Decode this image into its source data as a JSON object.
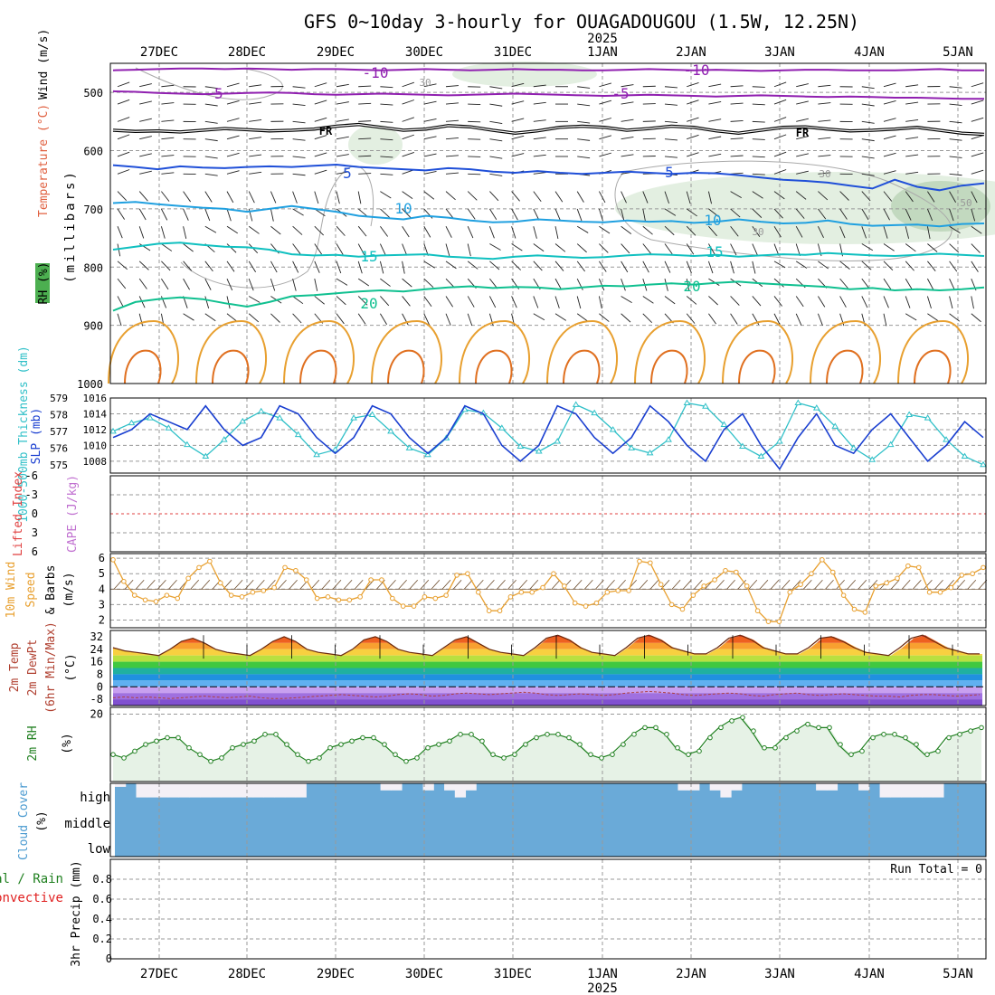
{
  "title": "GFS 0~10day 3-hourly for OUAGADOUGOU (1.5W, 12.25N)",
  "year_label": "2025",
  "date_labels": [
    "27DEC",
    "28DEC",
    "29DEC",
    "30DEC",
    "31DEC",
    "1JAN",
    "2JAN",
    "3JAN",
    "4JAN",
    "5JAN"
  ],
  "run_total_label": "Run Total = 0",
  "colors": {
    "wind_barb": "#000000",
    "temp_warm": "#e8a030",
    "temp_line_blue": "#1f4fd8",
    "slp": "#1a3fd0",
    "thickness": "#30c0c8",
    "wind_speed": "#e8a030",
    "rh": "#208020",
    "cloud": "#6aaad8",
    "rh_fill": "#e6f2e6"
  },
  "chart_data": [
    {
      "type": "line",
      "panel": "upper-air",
      "ylabel_parts": [
        "RH (%)",
        "Temperature (°C)",
        "Wind (m/s)"
      ],
      "axis_label": "(millibars)",
      "y_ticks": [
        "500",
        "600",
        "700",
        "800",
        "900",
        "1000"
      ],
      "y_tick_values": [
        500,
        600,
        700,
        800,
        900,
        1000
      ],
      "ylim": [
        450,
        1000
      ],
      "isotherm_labels": [
        "-10",
        "-10",
        "-5",
        "-5",
        "FR",
        "FR",
        "5",
        "5",
        "10",
        "10",
        "15",
        "15",
        "20",
        "20",
        "30",
        "30",
        "30",
        "50"
      ],
      "isotherms": [
        {
          "label": "-10",
          "values": [
            462,
            461,
            460,
            459,
            459,
            460,
            459,
            460,
            461,
            460,
            460,
            461,
            462,
            461,
            460,
            461,
            462,
            461,
            460,
            461,
            461,
            462,
            462,
            461,
            460,
            461,
            462,
            461,
            462,
            463,
            462,
            461,
            461,
            462,
            462,
            462,
            461,
            460,
            462,
            462
          ]
        },
        {
          "label": "-5",
          "values": [
            498,
            499,
            501,
            502,
            503,
            502,
            501,
            500,
            501,
            503,
            504,
            503,
            502,
            503,
            504,
            505,
            504,
            503,
            502,
            503,
            504,
            505,
            506,
            505,
            504,
            505,
            506,
            507,
            506,
            505,
            506,
            507,
            508,
            507,
            508,
            509,
            509,
            510,
            511,
            511
          ]
        },
        {
          "label": "FR",
          "values": [
            565,
            567,
            566,
            568,
            565,
            562,
            564,
            566,
            565,
            563,
            558,
            555,
            560,
            565,
            563,
            557,
            559,
            565,
            570,
            566,
            560,
            558,
            560,
            565,
            562,
            558,
            560,
            566,
            570,
            565,
            560,
            559,
            563,
            566,
            565,
            563,
            560,
            565,
            570,
            572
          ]
        },
        {
          "label": "5",
          "values": [
            625,
            628,
            632,
            627,
            629,
            630,
            628,
            627,
            628,
            626,
            624,
            628,
            630,
            632,
            634,
            630,
            632,
            636,
            638,
            635,
            638,
            640,
            638,
            636,
            638,
            640,
            638,
            639,
            642,
            646,
            650,
            652,
            655,
            660,
            665,
            650,
            662,
            668,
            660,
            656
          ]
        },
        {
          "label": "10",
          "values": [
            690,
            688,
            692,
            695,
            698,
            700,
            705,
            700,
            695,
            700,
            705,
            712,
            715,
            718,
            712,
            715,
            720,
            723,
            722,
            718,
            720,
            722,
            723,
            720,
            722,
            721,
            724,
            722,
            718,
            722,
            725,
            724,
            720,
            726,
            729,
            728,
            727,
            730,
            726,
            725
          ]
        },
        {
          "label": "15",
          "values": [
            770,
            765,
            760,
            758,
            762,
            765,
            766,
            770,
            778,
            780,
            779,
            782,
            780,
            779,
            778,
            782,
            784,
            786,
            782,
            780,
            782,
            784,
            783,
            780,
            778,
            779,
            781,
            779,
            782,
            780,
            778,
            779,
            776,
            778,
            780,
            781,
            779,
            777,
            779,
            781
          ]
        },
        {
          "label": "20",
          "values": [
            875,
            860,
            855,
            852,
            855,
            862,
            868,
            860,
            850,
            848,
            845,
            842,
            840,
            842,
            838,
            835,
            833,
            836,
            834,
            835,
            838,
            835,
            832,
            833,
            830,
            828,
            830,
            827,
            825,
            828,
            830,
            832,
            834,
            838,
            836,
            840,
            838,
            840,
            838,
            835
          ]
        }
      ]
    },
    {
      "type": "line",
      "panel": "thickness-slp",
      "ylabel": "1000-500mb Thickness (dm)",
      "ylabel2": "SLP (mb)",
      "y_left_ticks": [
        "575",
        "576",
        "577",
        "578",
        "579"
      ],
      "y_right_ticks": [
        "1008",
        "1010",
        "1012",
        "1014",
        "1016"
      ],
      "series": [
        {
          "name": "SLP (mb)",
          "values": [
            1011,
            1012,
            1014,
            1013,
            1012,
            1015,
            1012,
            1010,
            1011,
            1015,
            1014,
            1011,
            1009,
            1011,
            1015,
            1014,
            1011,
            1009,
            1011,
            1015,
            1014,
            1010,
            1008,
            1010,
            1015,
            1014,
            1011,
            1009,
            1011,
            1015,
            1013,
            1010,
            1008,
            1012,
            1014,
            1010,
            1007,
            1011,
            1014,
            1010,
            1009,
            1012,
            1014,
            1011,
            1008,
            1010,
            1013,
            1011
          ]
        },
        {
          "name": "Thickness (dm)",
          "values": [
            577.0,
            577.5,
            577.8,
            577.2,
            576.2,
            575.5,
            576.5,
            577.6,
            578.2,
            577.8,
            576.8,
            575.6,
            575.9,
            577.8,
            578.0,
            577.0,
            576.0,
            575.6,
            576.6,
            578.3,
            578.1,
            577.2,
            576.1,
            575.8,
            576.4,
            578.6,
            578.1,
            577.1,
            576.0,
            575.7,
            576.5,
            578.7,
            578.5,
            577.4,
            576.1,
            575.5,
            576.4,
            578.7,
            578.4,
            577.3,
            576.0,
            575.3,
            576.2,
            578.0,
            577.8,
            576.5,
            575.5,
            575.0
          ]
        }
      ]
    },
    {
      "type": "line",
      "panel": "cape-li",
      "ylabel": "Lifted Index",
      "ylabel2": "CAPE (J/kg)",
      "y_ticks": [
        "-6",
        "-3",
        "0",
        "3",
        "6"
      ],
      "series": [
        {
          "name": "Lifted Index",
          "values": []
        },
        {
          "name": "CAPE (J/kg)",
          "values": []
        }
      ]
    },
    {
      "type": "line",
      "panel": "wind10m",
      "ylabel_parts": [
        "10m Wind",
        "Speed",
        "& Barbs",
        "(m/s)"
      ],
      "y_ticks": [
        "2",
        "3",
        "4",
        "5",
        "6"
      ],
      "ylim": [
        1.5,
        6.3
      ],
      "series": [
        {
          "name": "10m Wind Speed",
          "values": [
            5.9,
            4.5,
            3.6,
            3.3,
            3.2,
            3.6,
            3.4,
            4.7,
            5.4,
            5.8,
            4.4,
            3.6,
            3.5,
            3.8,
            3.9,
            4.1,
            5.4,
            5.2,
            4.6,
            3.4,
            3.5,
            3.3,
            3.3,
            3.5,
            4.6,
            4.6,
            3.4,
            2.9,
            2.9,
            3.5,
            3.4,
            3.6,
            4.9,
            5.0,
            3.8,
            2.6,
            2.6,
            3.5,
            3.8,
            3.8,
            4.1,
            5.0,
            4.2,
            3.1,
            2.9,
            3.1,
            3.8,
            3.9,
            3.9,
            5.8,
            5.7,
            4.3,
            3.0,
            2.7,
            3.6,
            4.2,
            4.6,
            5.2,
            5.1,
            4.2,
            2.6,
            1.9,
            1.9,
            3.8,
            4.3,
            5.0,
            5.9,
            5.1,
            3.6,
            2.7,
            2.5,
            4.2,
            4.4,
            4.7,
            5.5,
            5.4,
            3.8,
            3.8,
            4.1,
            4.9,
            5.0,
            5.4
          ]
        }
      ]
    },
    {
      "type": "area",
      "panel": "temp2m",
      "ylabel_parts": [
        "2m Temp",
        "2m DewPt",
        "(6hr Min/Max)",
        "(°C)"
      ],
      "y_ticks": [
        "-8",
        "0",
        "8",
        "16",
        "24",
        "32"
      ],
      "ylim": [
        -12,
        36
      ],
      "series": [
        {
          "name": "2m Temp",
          "values": [
            25,
            23,
            22,
            21,
            20,
            24,
            29,
            31,
            28,
            24,
            22,
            21,
            20,
            24,
            29,
            32,
            29,
            24,
            22,
            21,
            20,
            24,
            30,
            32,
            29,
            24,
            22,
            21,
            20,
            25,
            30,
            32,
            28,
            24,
            22,
            21,
            20,
            25,
            31,
            33,
            30,
            25,
            22,
            21,
            20,
            25,
            31,
            33,
            30,
            25,
            23,
            21,
            21,
            25,
            31,
            33,
            30,
            25,
            23,
            21,
            21,
            25,
            31,
            32,
            29,
            25,
            22,
            21,
            20,
            25,
            31,
            33,
            29,
            25,
            23,
            21,
            21
          ]
        },
        {
          "name": "2m DewPt",
          "values": [
            -7,
            -6.5,
            -7,
            -6.5,
            -7,
            -7.5,
            -7,
            -6.5,
            -6,
            -6.5,
            -7,
            -6.5,
            -6,
            -7,
            -7.5,
            -7.5,
            -7,
            -6.5,
            -6,
            -5.5,
            -5,
            -5.5,
            -6,
            -6.5,
            -6,
            -5,
            -4.5,
            -5,
            -6,
            -5.5,
            -4.5,
            -4,
            -4.5,
            -5,
            -4.5,
            -4,
            -3.5,
            -4,
            -5,
            -5.5,
            -5,
            -4.5,
            -5,
            -5.5,
            -5,
            -4,
            -3.5,
            -3,
            -3.5,
            -4,
            -5,
            -5.5,
            -5,
            -4.5,
            -4,
            -4.5,
            -5.5,
            -6,
            -5,
            -4.5,
            -4,
            -5,
            -5.5,
            -5,
            -4.5,
            -5,
            -5.5,
            -6,
            -6,
            -6.5,
            -5.5,
            -5,
            -5,
            -5.5,
            -6,
            -5.5,
            -5
          ]
        }
      ]
    },
    {
      "type": "area",
      "panel": "rh2m",
      "ylabel": "2m RH",
      "unit": "(%)",
      "y_ticks": [
        "20"
      ],
      "ylim": [
        0,
        22
      ],
      "series": [
        {
          "name": "2m RH",
          "values": [
            8,
            7,
            9,
            11,
            12,
            13,
            13,
            10,
            8,
            6,
            7,
            10,
            11,
            12,
            14,
            14,
            11,
            8,
            6,
            7,
            10,
            11,
            12,
            13,
            13,
            11,
            8,
            6,
            7,
            10,
            11,
            12,
            14,
            14,
            12,
            8,
            7,
            8,
            11,
            13,
            14,
            14,
            13,
            11,
            8,
            7,
            8,
            11,
            14,
            16,
            16,
            14,
            10,
            8,
            9,
            13,
            16,
            18,
            19,
            15,
            10,
            10,
            13,
            15,
            17,
            16,
            16,
            11,
            8,
            9,
            13,
            14,
            14,
            13,
            11,
            8,
            9,
            13,
            14,
            15,
            16
          ]
        }
      ]
    },
    {
      "type": "bar",
      "panel": "cloud",
      "ylabel": "Cloud Cover",
      "unit": "(%)",
      "y_ticks": [
        "high",
        "middle",
        "low"
      ],
      "series": [
        {
          "name": "high",
          "values": [
            85,
            100,
            40,
            40,
            40,
            40,
            40,
            40,
            40,
            40,
            40,
            40,
            40,
            40,
            40,
            40,
            40,
            40,
            100,
            100,
            100,
            100,
            100,
            100,
            100,
            70,
            70,
            100,
            100,
            70,
            100,
            70,
            40,
            70,
            100,
            100,
            100,
            100,
            100,
            100,
            100,
            100,
            100,
            100,
            100,
            100,
            100,
            100,
            100,
            100,
            100,
            100,
            100,
            70,
            70,
            100,
            70,
            40,
            70,
            100,
            100,
            100,
            100,
            100,
            100,
            100,
            70,
            70,
            100,
            100,
            70,
            100,
            40,
            40,
            40,
            40,
            40,
            40,
            100,
            100,
            100,
            100
          ]
        }
      ]
    },
    {
      "type": "bar",
      "panel": "precip",
      "ylabel": "3hr Precip (mm)",
      "ylabel_parts": [
        "Total / Rain",
        "Convective"
      ],
      "y_ticks": [
        "0",
        "0.2",
        "0.4",
        "0.6",
        "0.8"
      ],
      "ylim": [
        0,
        1
      ],
      "series": [
        {
          "name": "Total / Rain",
          "values": []
        }
      ]
    }
  ]
}
